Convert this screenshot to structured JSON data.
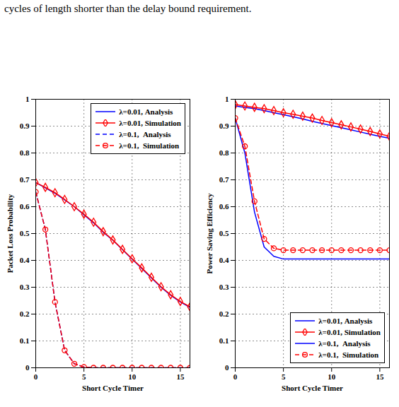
{
  "text": "cycles of length shorter than the delay bound requirement.",
  "chart_data": [
    {
      "type": "line",
      "xlabel": "Short Cycle Timer",
      "ylabel": "Packet Loss Probability",
      "x": [
        0,
        1,
        2,
        3,
        4,
        5,
        6,
        7,
        8,
        9,
        10,
        11,
        12,
        13,
        14,
        15,
        16
      ],
      "xlim": [
        0,
        16
      ],
      "xticks": [
        0,
        5,
        10,
        15
      ],
      "ylim": [
        0,
        1
      ],
      "yticks": [
        0,
        0.1,
        0.2,
        0.3,
        0.4,
        0.5,
        0.6,
        0.7,
        0.8,
        0.9,
        1
      ],
      "grid": true,
      "legend": "top-right",
      "series": [
        {
          "name": "λ=0.01, Analysis",
          "color": "#0000ff",
          "line_style": "solid",
          "values": [
            0.69,
            0.67,
            0.65,
            0.625,
            0.6,
            0.57,
            0.54,
            0.505,
            0.475,
            0.44,
            0.405,
            0.37,
            0.335,
            0.3,
            0.27,
            0.245,
            0.225
          ]
        },
        {
          "name": "λ=0.01, Simulation",
          "color": "#ff0000",
          "line_style": "solid",
          "marker": "diamond",
          "values": [
            0.69,
            0.672,
            0.652,
            0.627,
            0.6,
            0.572,
            0.542,
            0.507,
            0.476,
            0.441,
            0.406,
            0.372,
            0.337,
            0.302,
            0.272,
            0.247,
            0.227
          ]
        },
        {
          "name": "λ=0.1,  Analysis",
          "color": "#0000ff",
          "line_style": "dashed",
          "values": [
            0.655,
            0.515,
            0.245,
            0.065,
            0.015,
            0.003,
            0,
            0,
            0,
            0,
            0,
            0,
            0,
            0,
            0,
            0,
            0
          ]
        },
        {
          "name": "λ=0.1,  Simulation",
          "color": "#ff0000",
          "line_style": "dashed",
          "marker": "circle",
          "values": [
            0.655,
            0.515,
            0.245,
            0.065,
            0.015,
            0.003,
            0,
            0,
            0,
            0,
            0,
            0,
            0,
            0,
            0,
            0,
            0
          ]
        }
      ]
    },
    {
      "type": "line",
      "xlabel": "Short Cycle Timer",
      "ylabel": "Power Saving Efficiency",
      "x": [
        0,
        1,
        2,
        3,
        4,
        5,
        6,
        7,
        8,
        9,
        10,
        11,
        12,
        13,
        14,
        15,
        16
      ],
      "xlim": [
        0,
        16
      ],
      "xticks": [
        0,
        5,
        10,
        15
      ],
      "ylim": [
        0,
        1
      ],
      "yticks": [
        0,
        0.1,
        0.2,
        0.3,
        0.4,
        0.5,
        0.6,
        0.7,
        0.8,
        0.9,
        1
      ],
      "grid": true,
      "legend": "bottom-right",
      "series": [
        {
          "name": "λ=0.01, Analysis",
          "color": "#0000ff",
          "line_style": "solid",
          "values": [
            0.975,
            0.97,
            0.965,
            0.958,
            0.95,
            0.943,
            0.935,
            0.927,
            0.918,
            0.91,
            0.902,
            0.894,
            0.886,
            0.878,
            0.87,
            0.862,
            0.855
          ]
        },
        {
          "name": "λ=0.01, Simulation",
          "color": "#ff0000",
          "line_style": "solid",
          "marker": "diamond",
          "values": [
            0.98,
            0.975,
            0.97,
            0.965,
            0.958,
            0.95,
            0.944,
            0.937,
            0.93,
            0.921,
            0.913,
            0.905,
            0.897,
            0.889,
            0.88,
            0.871,
            0.862
          ]
        },
        {
          "name": "λ=0.1,  Analysis",
          "color": "#0000ff",
          "line_style": "solid",
          "values": [
            0.93,
            0.8,
            0.58,
            0.45,
            0.415,
            0.405,
            0.405,
            0.405,
            0.405,
            0.405,
            0.405,
            0.405,
            0.405,
            0.405,
            0.405,
            0.405,
            0.405
          ]
        },
        {
          "name": "λ=0.1,  Simulation",
          "color": "#ff0000",
          "line_style": "dashed",
          "marker": "circle",
          "values": [
            0.93,
            0.825,
            0.62,
            0.48,
            0.445,
            0.438,
            0.438,
            0.438,
            0.438,
            0.438,
            0.438,
            0.438,
            0.438,
            0.438,
            0.438,
            0.438,
            0.438
          ]
        }
      ]
    }
  ]
}
